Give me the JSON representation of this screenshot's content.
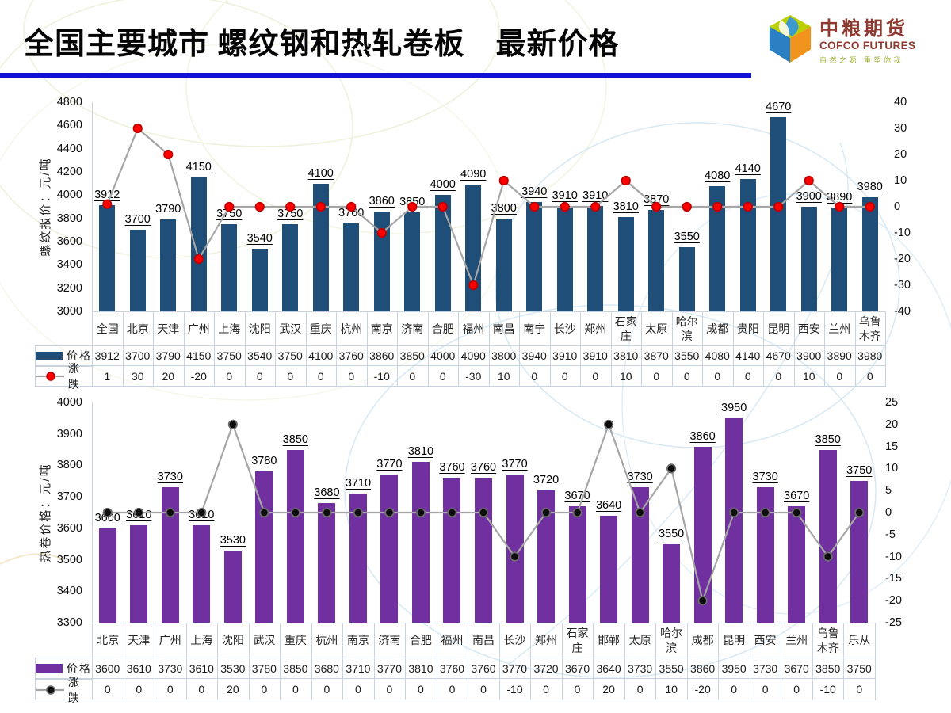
{
  "header": {
    "title": "全国主要城市 螺纹钢和热轧卷板　最新价格",
    "underline_color": "#1212D6",
    "logo": {
      "cn": "中粮期货",
      "en": "COFCO FUTURES",
      "tagline": "自然之源 重塑你我"
    }
  },
  "colors": {
    "rebar_bar": "#1F4E79",
    "hrc_bar": "#7030A0",
    "line": "#A6A6A6",
    "rebar_marker": "#FF0000",
    "hrc_marker": "#0D0D0D"
  },
  "chart_data": [
    {
      "type": "bar",
      "name": "rebar-price-chart",
      "ylabel": "螺纹报价：元/吨",
      "grid": false,
      "legend_position": "table-left",
      "categories": [
        "全国",
        "北京",
        "天津",
        "广州",
        "上海",
        "沈阳",
        "武汉",
        "重庆",
        "杭州",
        "南京",
        "济南",
        "合肥",
        "福州",
        "南昌",
        "南宁",
        "长沙",
        "郑州",
        "石家庄",
        "太原",
        "哈尔滨",
        "成都",
        "贵阳",
        "昆明",
        "西安",
        "兰州",
        "乌鲁木齐"
      ],
      "series": [
        {
          "name": "价格",
          "type": "bar",
          "axis": "left",
          "color": "#1F4E79",
          "values": [
            3912,
            3700,
            3790,
            4150,
            3750,
            3540,
            3750,
            4100,
            3760,
            3860,
            3850,
            4000,
            4090,
            3800,
            3940,
            3910,
            3910,
            3810,
            3870,
            3550,
            4080,
            4140,
            4670,
            3900,
            3890,
            3980
          ]
        },
        {
          "name": "涨跌",
          "type": "line",
          "axis": "right",
          "color": "#A6A6A6",
          "marker_fill": "#FF0000",
          "marker_stroke": "#C00000",
          "values": [
            1,
            30,
            20,
            -20,
            0,
            0,
            0,
            0,
            0,
            -10,
            0,
            0,
            -30,
            10,
            0,
            0,
            0,
            10,
            0,
            0,
            0,
            0,
            0,
            10,
            0,
            0
          ]
        }
      ],
      "left_axis": {
        "min": 3000,
        "max": 4800,
        "step": 200
      },
      "right_axis": {
        "min": -40,
        "max": 40,
        "step": 10
      }
    },
    {
      "type": "bar",
      "name": "hot-rolled-coil-chart",
      "ylabel": "热卷价格：元/吨",
      "grid": false,
      "legend_position": "table-left",
      "categories": [
        "北京",
        "天津",
        "广州",
        "上海",
        "沈阳",
        "武汉",
        "重庆",
        "杭州",
        "南京",
        "济南",
        "合肥",
        "福州",
        "南昌",
        "长沙",
        "郑州",
        "石家庄",
        "邯郸",
        "太原",
        "哈尔滨",
        "成都",
        "昆明",
        "西安",
        "兰州",
        "乌鲁木齐",
        "乐从"
      ],
      "series": [
        {
          "name": "价格",
          "type": "bar",
          "axis": "left",
          "color": "#7030A0",
          "values": [
            3600,
            3610,
            3730,
            3610,
            3530,
            3780,
            3850,
            3680,
            3710,
            3770,
            3810,
            3760,
            3760,
            3770,
            3720,
            3670,
            3640,
            3730,
            3550,
            3860,
            3950,
            3730,
            3670,
            3850,
            3750
          ]
        },
        {
          "name": "涨跌",
          "type": "line",
          "axis": "right",
          "color": "#A6A6A6",
          "marker_fill": "#0D0D0D",
          "marker_stroke": "#6B6B6B",
          "values": [
            0,
            0,
            0,
            0,
            20,
            0,
            0,
            0,
            0,
            0,
            0,
            0,
            0,
            -10,
            0,
            0,
            20,
            0,
            10,
            -20,
            0,
            0,
            0,
            -10,
            0
          ]
        }
      ],
      "left_axis": {
        "min": 3300,
        "max": 4000,
        "step": 100
      },
      "right_axis": {
        "min": -25,
        "max": 25,
        "step": 5
      }
    }
  ]
}
